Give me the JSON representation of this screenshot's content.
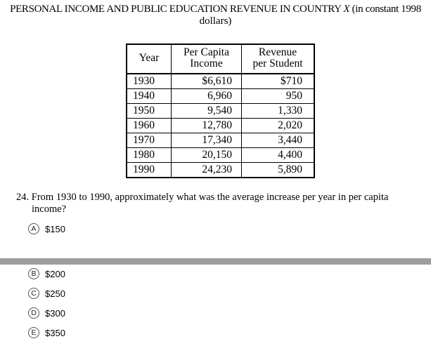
{
  "title": {
    "line1_prefix": "PERSONAL INCOME AND PUBLIC EDUCATION REVENUE IN COUNTRY ",
    "line1_var": "X",
    "line1_suffix": " (in constant 1998",
    "line2": "dollars)"
  },
  "table": {
    "headers": {
      "year": "Year",
      "income_line1": "Per Capita",
      "income_line2": "Income",
      "revenue_line1": "Revenue",
      "revenue_line2": "per Student"
    },
    "rows": [
      {
        "year": "1930",
        "income": "$6,610",
        "revenue": "$710"
      },
      {
        "year": "1940",
        "income": "6,960",
        "revenue": "950"
      },
      {
        "year": "1950",
        "income": "9,540",
        "revenue": "1,330"
      },
      {
        "year": "1960",
        "income": "12,780",
        "revenue": "2,020"
      },
      {
        "year": "1970",
        "income": "17,340",
        "revenue": "3,440"
      },
      {
        "year": "1980",
        "income": "20,150",
        "revenue": "4,400"
      },
      {
        "year": "1990",
        "income": "24,230",
        "revenue": "5,890"
      }
    ]
  },
  "question": {
    "number": "24.",
    "text_line1": "From 1930 to 1990, approximately what was the average increase per year in per capita",
    "text_line2": "income?"
  },
  "choices": [
    {
      "letter": "A",
      "value": "$150"
    },
    {
      "letter": "B",
      "value": "$200"
    },
    {
      "letter": "C",
      "value": "$250"
    },
    {
      "letter": "D",
      "value": "$300"
    },
    {
      "letter": "E",
      "value": "$350"
    }
  ]
}
